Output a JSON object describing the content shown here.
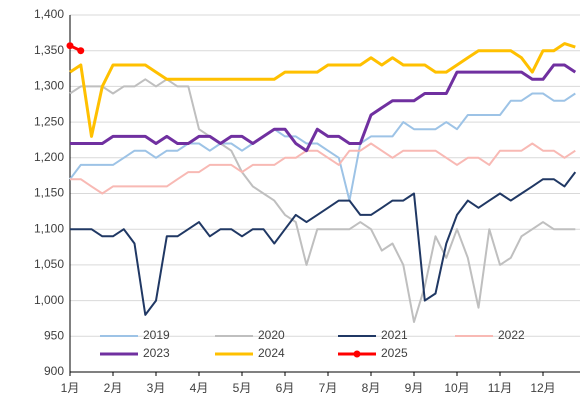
{
  "chart_data": {
    "type": "line",
    "categories": [
      "1月",
      null,
      null,
      null,
      "2月",
      null,
      null,
      null,
      "3月",
      null,
      null,
      null,
      "4月",
      null,
      null,
      null,
      "5月",
      null,
      null,
      null,
      "6月",
      null,
      null,
      null,
      "7月",
      null,
      null,
      null,
      "8月",
      null,
      null,
      null,
      "9月",
      null,
      null,
      null,
      "10月",
      null,
      null,
      null,
      "11月",
      null,
      null,
      null,
      "12月",
      null,
      null,
      null
    ],
    "ylim": [
      900,
      1400
    ],
    "yticks": [
      900,
      950,
      {
        "value": 1000,
        "label": "1,000"
      },
      {
        "value": 1050,
        "label": "1,050"
      },
      {
        "value": 1100,
        "label": "1,100"
      },
      {
        "value": 1150,
        "label": "1,150"
      },
      {
        "value": 1200,
        "label": "1,200"
      },
      {
        "value": 1250,
        "label": "1,250"
      },
      {
        "value": 1300,
        "label": "1,300"
      },
      {
        "value": 1350,
        "label": "1,350"
      },
      {
        "value": 1400,
        "label": "1,400"
      }
    ],
    "grid": true,
    "legend": "bottom",
    "series": [
      {
        "name": "2019",
        "color": "#9DC3E6",
        "values": [
          1170,
          1190,
          1190,
          1190,
          1190,
          1200,
          1210,
          1210,
          1200,
          1210,
          1210,
          1220,
          1220,
          1210,
          1220,
          1220,
          1210,
          1220,
          1230,
          1240,
          1230,
          1230,
          1220,
          1220,
          1210,
          1200,
          1140,
          1220,
          1230,
          1230,
          1230,
          1250,
          1240,
          1240,
          1240,
          1250,
          1240,
          1260,
          1260,
          1260,
          1260,
          1280,
          1280,
          1290,
          1290,
          1280,
          1280,
          1290
        ]
      },
      {
        "name": "2020",
        "color": "#BFBFBF",
        "values": [
          1290,
          1300,
          1300,
          1300,
          1290,
          1300,
          1300,
          1310,
          1300,
          1310,
          1300,
          1300,
          1240,
          1230,
          1220,
          1210,
          1180,
          1160,
          1150,
          1140,
          1120,
          1110,
          1050,
          1100,
          1100,
          1100,
          1100,
          1110,
          1100,
          1070,
          1080,
          1050,
          970,
          1020,
          1090,
          1060,
          1100,
          1060,
          990,
          1100,
          1050,
          1060,
          1090,
          1100,
          1110,
          1100,
          1100,
          1100
        ]
      },
      {
        "name": "2021",
        "color": "#203864",
        "values": [
          1100,
          1100,
          1100,
          1090,
          1090,
          1100,
          1080,
          980,
          1000,
          1090,
          1090,
          1100,
          1110,
          1090,
          1100,
          1100,
          1090,
          1100,
          1100,
          1080,
          1100,
          1120,
          1110,
          1120,
          1130,
          1140,
          1140,
          1120,
          1120,
          1130,
          1140,
          1140,
          1150,
          1000,
          1010,
          1080,
          1120,
          1140,
          1130,
          1140,
          1150,
          1140,
          1150,
          1160,
          1170,
          1170,
          1160,
          1180
        ]
      },
      {
        "name": "2022",
        "color": "#F8B9B4",
        "values": [
          1170,
          1170,
          1160,
          1150,
          1160,
          1160,
          1160,
          1160,
          1160,
          1160,
          1170,
          1180,
          1180,
          1190,
          1190,
          1190,
          1180,
          1190,
          1190,
          1190,
          1200,
          1200,
          1210,
          1210,
          1200,
          1190,
          1210,
          1210,
          1220,
          1210,
          1200,
          1210,
          1210,
          1210,
          1210,
          1200,
          1190,
          1200,
          1200,
          1190,
          1210,
          1210,
          1210,
          1220,
          1210,
          1210,
          1200,
          1210
        ]
      },
      {
        "name": "2023",
        "color": "#7030A0",
        "values": [
          1220,
          1220,
          1220,
          1220,
          1230,
          1230,
          1230,
          1230,
          1220,
          1230,
          1220,
          1220,
          1230,
          1230,
          1220,
          1230,
          1230,
          1220,
          1230,
          1240,
          1240,
          1220,
          1210,
          1240,
          1230,
          1230,
          1220,
          1220,
          1260,
          1270,
          1280,
          1280,
          1280,
          1290,
          1290,
          1290,
          1320,
          1320,
          1320,
          1320,
          1320,
          1320,
          1320,
          1310,
          1310,
          1330,
          1330,
          1320
        ]
      },
      {
        "name": "2024",
        "color": "#FFC000",
        "values": [
          1320,
          1330,
          1230,
          1300,
          1330,
          1330,
          1330,
          1330,
          1320,
          1310,
          1310,
          1310,
          1310,
          1310,
          1310,
          1310,
          1310,
          1310,
          1310,
          1310,
          1320,
          1320,
          1320,
          1320,
          1330,
          1330,
          1330,
          1330,
          1340,
          1330,
          1340,
          1330,
          1330,
          1330,
          1320,
          1320,
          1330,
          1340,
          1350,
          1350,
          1350,
          1350,
          1340,
          1320,
          1350,
          1350,
          1360,
          1355
        ]
      },
      {
        "name": "2025",
        "color": "#FF0000",
        "marker": "circle",
        "values": [
          1357,
          1350,
          null,
          null,
          null,
          null,
          null,
          null,
          null,
          null,
          null,
          null,
          null,
          null,
          null,
          null,
          null,
          null,
          null,
          null,
          null,
          null,
          null,
          null,
          null,
          null,
          null,
          null,
          null,
          null,
          null,
          null,
          null,
          null,
          null,
          null,
          null,
          null,
          null,
          null,
          null,
          null,
          null,
          null,
          null,
          null,
          null,
          null
        ]
      }
    ]
  }
}
